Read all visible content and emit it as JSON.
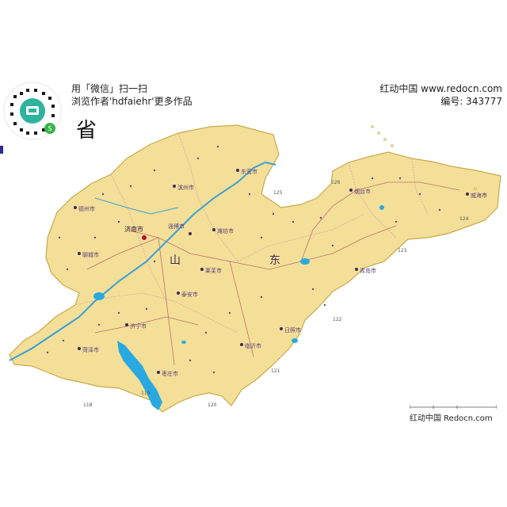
{
  "header": {
    "wechat_line1": "用「微信」扫一扫",
    "wechat_line2": "浏览作者'hdfaiehr'更多作品",
    "site": "红动中国 www.redocn.com",
    "id_label": "编号: 343777"
  },
  "title_glyph": "省",
  "map": {
    "region_chars": [
      "山",
      "东"
    ],
    "capital": "济南市",
    "places": [
      "烟台市",
      "威海市",
      "潍坊市",
      "淄博市",
      "临沂市",
      "泰安市",
      "济宁市",
      "枣庄市",
      "日照市",
      "聊城市",
      "德州市",
      "滨州市",
      "东营市",
      "青岛市",
      "莱芜市",
      "菏泽市"
    ],
    "route_numbers": [
      "118",
      "119",
      "120",
      "121",
      "122",
      "123",
      "124",
      "125",
      "126"
    ]
  },
  "footer": {
    "brand": "红动中国 Redocn.com"
  },
  "colors": {
    "land": "#f3df97",
    "land_stroke": "#c9a94e",
    "water": "#2aa9e0",
    "road": "#c07070",
    "river": "#3a9fd8"
  }
}
